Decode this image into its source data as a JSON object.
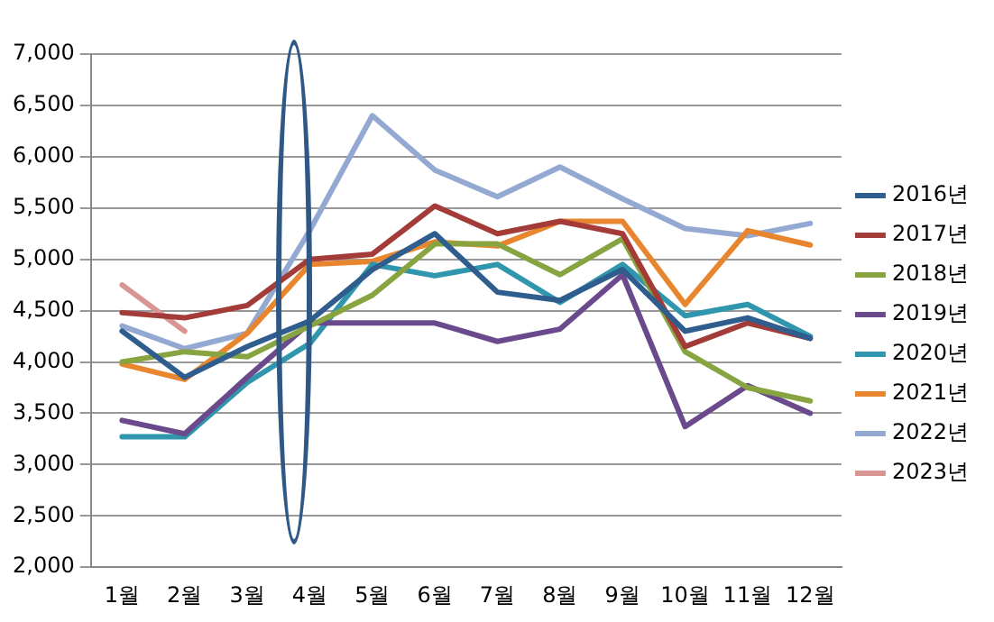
{
  "chart_data": {
    "type": "line",
    "categories": [
      "1월",
      "2월",
      "3월",
      "4월",
      "5월",
      "6월",
      "7월",
      "8월",
      "9월",
      "10월",
      "11월",
      "12월"
    ],
    "ylim": [
      2000,
      7000
    ],
    "yticks": [
      {
        "value": 2000,
        "label": "2,000"
      },
      {
        "value": 2500,
        "label": "2,500"
      },
      {
        "value": 3000,
        "label": "3,000"
      },
      {
        "value": 3500,
        "label": "3,500"
      },
      {
        "value": 4000,
        "label": "4,000"
      },
      {
        "value": 4500,
        "label": "4,500"
      },
      {
        "value": 5000,
        "label": "5,000"
      },
      {
        "value": 5500,
        "label": "5,500"
      },
      {
        "value": 6000,
        "label": "6,000"
      },
      {
        "value": 6500,
        "label": "6,500"
      },
      {
        "value": 7000,
        "label": "7,000"
      }
    ],
    "grid": "y",
    "legend": "right",
    "marker": "none",
    "line_style": "solid",
    "series": [
      {
        "name": "2016년",
        "color": "#2e5d8e",
        "values": [
          4300,
          3850,
          4150,
          4400,
          4900,
          5250,
          4680,
          4600,
          4900,
          4300,
          4430,
          4230
        ]
      },
      {
        "name": "2017년",
        "color": "#a33b39",
        "values": [
          4480,
          4430,
          4550,
          5000,
          5050,
          5520,
          5250,
          5370,
          5250,
          4150,
          4380,
          4230
        ]
      },
      {
        "name": "2018년",
        "color": "#87a440",
        "values": [
          4000,
          4100,
          4050,
          4350,
          4650,
          5150,
          5150,
          4850,
          5200,
          4100,
          3750,
          3620
        ]
      },
      {
        "name": "2019년",
        "color": "#6a4a8c",
        "values": [
          3430,
          3300,
          3850,
          4380,
          4380,
          4380,
          4200,
          4320,
          4850,
          3370,
          3770,
          3500
        ]
      },
      {
        "name": "2020년",
        "color": "#2f96ad",
        "values": [
          3270,
          3270,
          3800,
          4180,
          4950,
          4840,
          4950,
          4580,
          4950,
          4450,
          4560,
          4250
        ]
      },
      {
        "name": "2021년",
        "color": "#e8862f",
        "values": [
          3980,
          3830,
          4280,
          4950,
          4980,
          5170,
          5130,
          5370,
          5370,
          4560,
          5280,
          5140
        ]
      },
      {
        "name": "2022년",
        "color": "#93a9d2",
        "values": [
          4350,
          4130,
          4280,
          5280,
          6400,
          5870,
          5610,
          5900,
          5590,
          5300,
          5230,
          5350
        ]
      },
      {
        "name": "2023년",
        "color": "#d99594",
        "values": [
          4750,
          4300,
          null,
          null,
          null,
          null,
          null,
          null,
          null,
          null,
          null,
          null
        ]
      }
    ]
  }
}
